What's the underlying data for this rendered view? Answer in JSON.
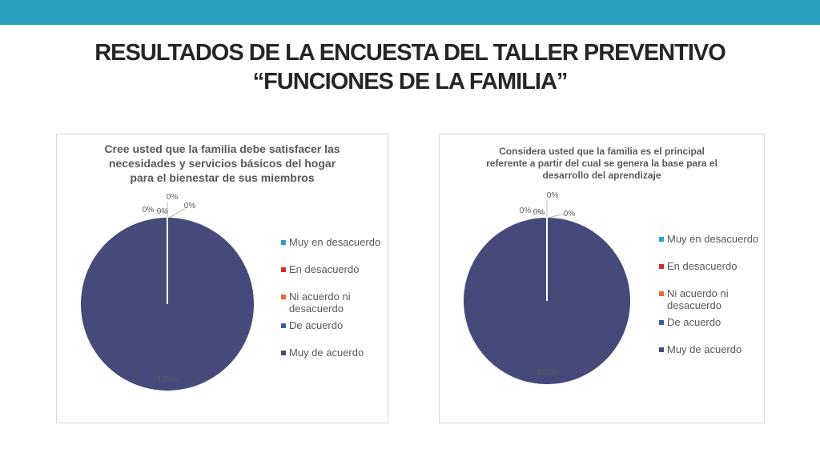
{
  "title": {
    "line1": "RESULTADOS DE LA ENCUESTA DEL TALLER PREVENTIVO",
    "line2": "“FUNCIONES DE LA FAMILIA”"
  },
  "colors": {
    "top_bar": "#2b9fc0",
    "muy_en_desacuerdo": "#2e9fd1",
    "en_desacuerdo": "#d22b2b",
    "ni_acuerdo": "#e56a2e",
    "de_acuerdo": "#3a5ba8",
    "muy_de_acuerdo": "#454a7a"
  },
  "chart_data": [
    {
      "type": "pie",
      "title": "Cree usted que la familia debe satisfacer las necesidades y servicios básicos del hogar para el bienestar de sus miembros",
      "title_lines": [
        "Cree usted que la familia debe satisfacer las",
        "necesidades y servicios básicos del hogar",
        "para el bienestar de sus miembros"
      ],
      "categories": [
        "Muy en desacuerdo",
        "En desacuerdo",
        "Ni acuerdo ni desacuerdo",
        "De acuerdo",
        "Muy de acuerdo"
      ],
      "values": [
        0,
        0,
        0,
        0,
        100
      ],
      "data_labels": [
        "0%",
        "0%",
        "0%",
        "0%",
        "100%"
      ],
      "legend": "right"
    },
    {
      "type": "pie",
      "title": "Considera usted que la familia es el principal referente a partir del cual se genera la base para el desarrollo del aprendizaje",
      "title_lines": [
        "Considera usted que la familia es el  principal",
        "referente a partir del cual se  genera la base para el",
        "desarrollo del  aprendizaje"
      ],
      "categories": [
        "Muy en desacuerdo",
        "En desacuerdo",
        "Ni acuerdo ni desacuerdo",
        "De acuerdo",
        "Muy de acuerdo"
      ],
      "values": [
        0,
        0,
        0,
        0,
        100
      ],
      "data_labels": [
        "0%",
        "0%",
        "0%",
        "0%",
        "100%"
      ],
      "legend": "right"
    }
  ],
  "legend_labels": {
    "item1": "Muy en desacuerdo",
    "item2": "En desacuerdo",
    "item3_line1": "Ni acuerdo ni",
    "item3_line2": "desacuerdo",
    "item4": "De acuerdo",
    "item5": "Muy de acuerdo"
  }
}
